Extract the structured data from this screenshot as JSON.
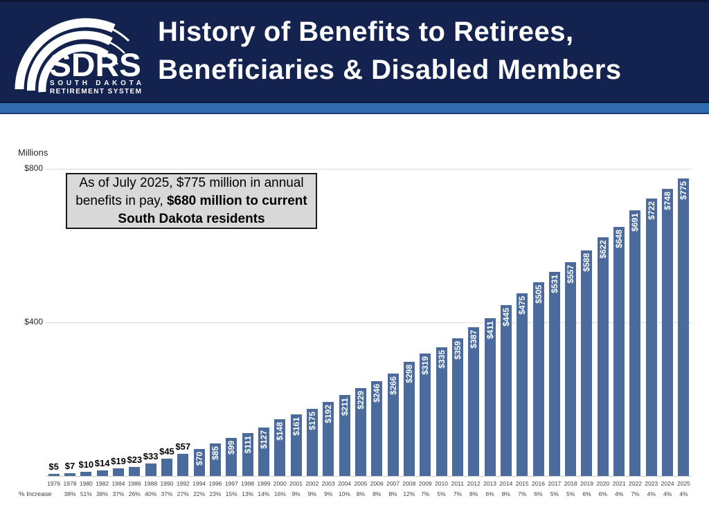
{
  "header": {
    "title_line1": "History of Benefits to Retirees,",
    "title_line2": "Beneficiaries & Disabled Members",
    "logo": {
      "acronym": "SDRS",
      "sub_line1": "SOUTH DAKOTA",
      "sub_line2": "RETIREMENT SYSTEM"
    },
    "background_color": "#14224f",
    "strip_color": "#2f6bae"
  },
  "annotation": {
    "black_text": "As of July 2025, $775 million in annual benefits in pay, ",
    "blue_text": "$680 million to current South Dakota residents",
    "blue_color": "#3c69ae",
    "background_color": "#d9d9d9"
  },
  "axis": {
    "units_label": "Millions",
    "tick_top": "$800",
    "tick_mid": "$400",
    "pct_row_label": "% Increase"
  },
  "chart_data": {
    "type": "bar",
    "title": "History of Benefits to Retirees, Beneficiaries & Disabled Members",
    "ylabel": "Millions",
    "ylim": [
      0,
      800
    ],
    "ytick_values": [
      400,
      800
    ],
    "grid": "horizontal",
    "legend": "none",
    "bar_color": "#4a6b9c",
    "value_prefix": "$",
    "inside_label_min": 70,
    "categories": [
      "1976",
      "1978",
      "1980",
      "1982",
      "1984",
      "1986",
      "1988",
      "1990",
      "1992",
      "1994",
      "1996",
      "1997",
      "1998",
      "1999",
      "2000",
      "2001",
      "2002",
      "2003",
      "2004",
      "2005",
      "2006",
      "2007",
      "2008",
      "2009",
      "2010",
      "2011",
      "2012",
      "2013",
      "2014",
      "2015",
      "2016",
      "2017",
      "2018",
      "2019",
      "2020",
      "2021",
      "2022",
      "2023",
      "2024",
      "2025"
    ],
    "values": [
      5,
      7,
      10,
      14,
      19,
      23,
      33,
      45,
      57,
      70,
      85,
      99,
      111,
      127,
      148,
      161,
      175,
      192,
      211,
      229,
      246,
      266,
      298,
      319,
      335,
      359,
      387,
      411,
      445,
      475,
      505,
      531,
      557,
      588,
      622,
      648,
      691,
      722,
      748,
      775
    ],
    "pct_increase": [
      "",
      "38%",
      "51%",
      "38%",
      "37%",
      "26%",
      "40%",
      "37%",
      "27%",
      "22%",
      "23%",
      "15%",
      "13%",
      "14%",
      "16%",
      "9%",
      "9%",
      "9%",
      "10%",
      "8%",
      "8%",
      "8%",
      "12%",
      "7%",
      "5%",
      "7%",
      "8%",
      "6%",
      "8%",
      "7%",
      "6%",
      "5%",
      "5%",
      "6%",
      "6%",
      "4%",
      "7%",
      "4%",
      "4%",
      "4%"
    ]
  }
}
